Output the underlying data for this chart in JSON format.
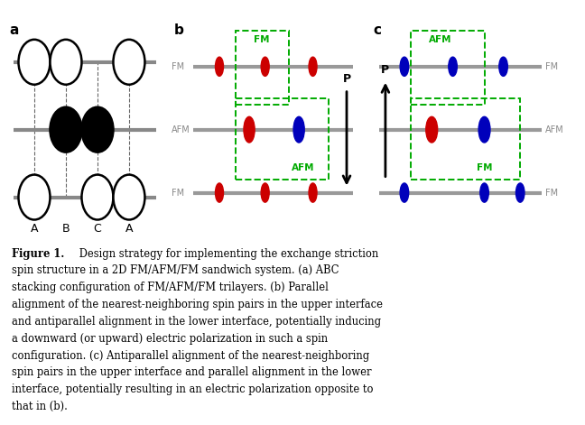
{
  "bg_color": "#ffffff",
  "fig_width": 6.48,
  "fig_height": 4.71,
  "panel_a_label": "a",
  "panel_b_label": "b",
  "panel_c_label": "c",
  "caption": "Figure 1.  Design strategy for implementing the exchange striction\nspin structure in a 2D FM/AFM/FM sandwich system. (a) ABC\nstacking configuration of FM/AFM/FM trilayers. (b) Parallel\nalignment of the nearest-neighboring spin pairs in the upper interface\nand antiparallel alignment in the lower interface, potentially inducing\na downward (or upward) electric polarization in such a spin\nconfiguration. (c) Antiparallel alignment of the nearest-neighboring\nspin pairs in the upper interface and parallel alignment in the lower\ninterface, potentially resulting in an electric polarization opposite to\nthat in (b).",
  "gray_color": "#999999",
  "green_dashed": "#00aa00",
  "red_color": "#cc0000",
  "blue_color": "#0000bb",
  "black_color": "#000000",
  "fm_afm_color": "#888888"
}
